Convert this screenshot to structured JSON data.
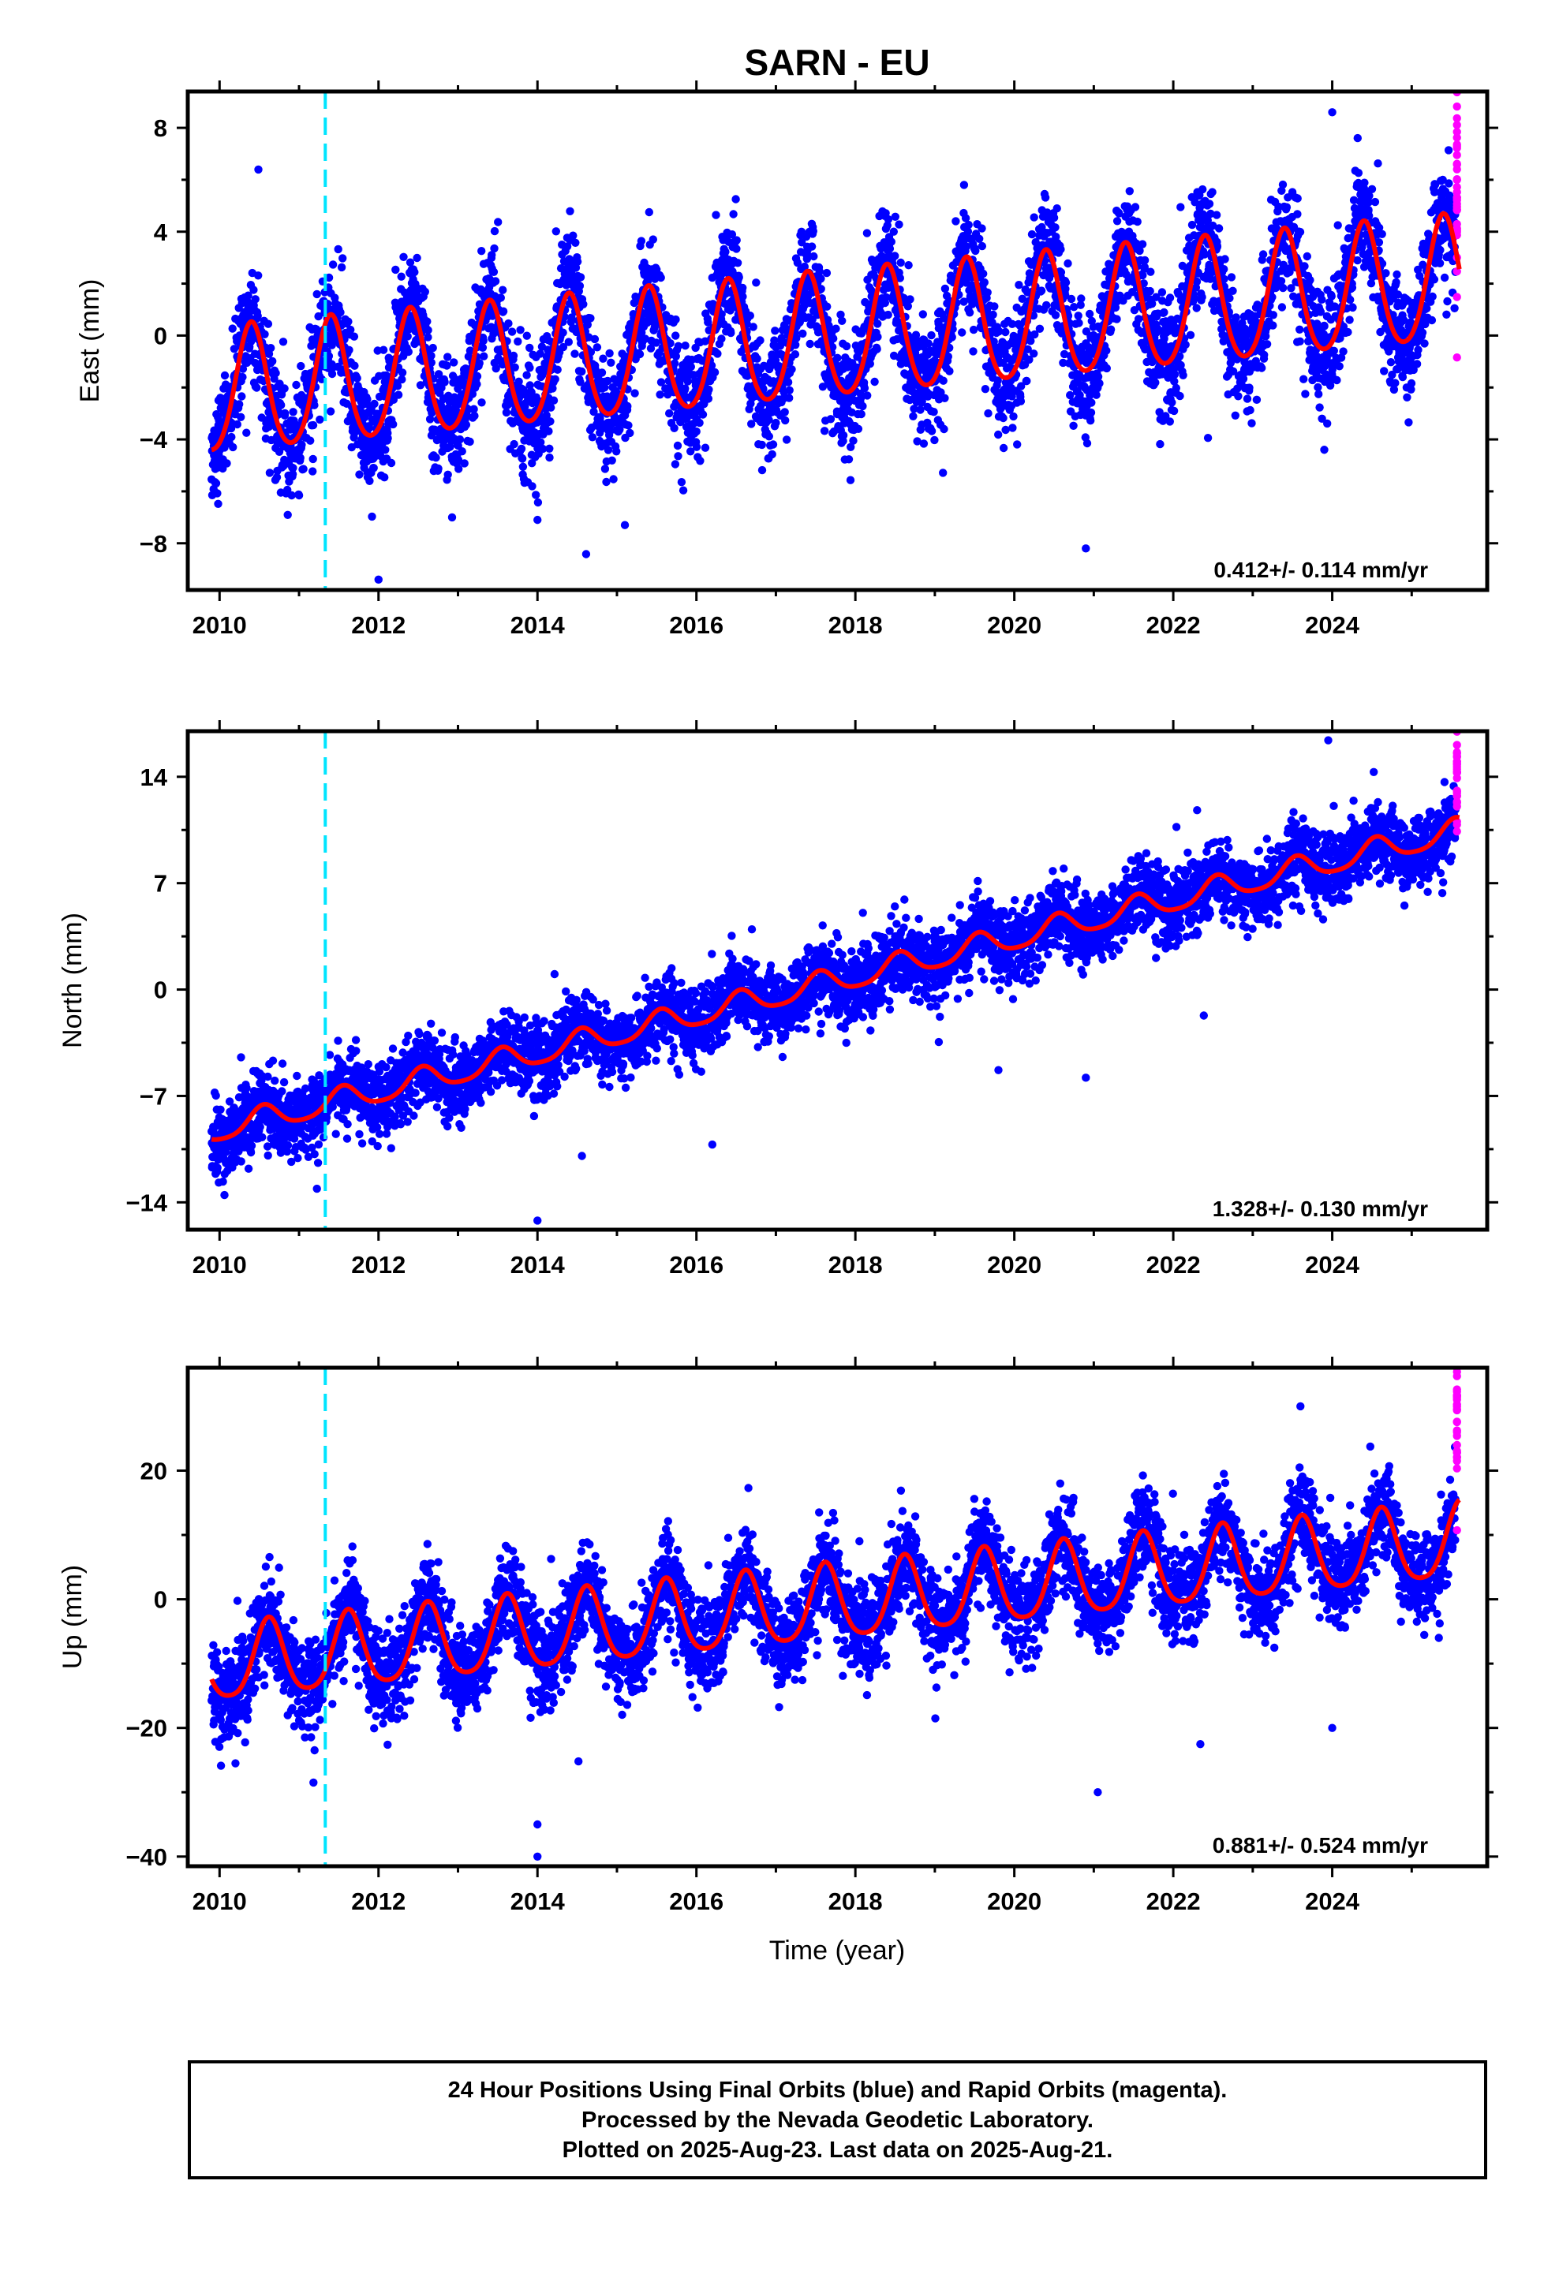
{
  "title": "SARN - EU",
  "colors": {
    "final_orbits": "#0000ff",
    "rapid_orbits": "#ff00ff",
    "model_fit": "#ff0000",
    "equipment_change": "#00e5ff",
    "frame": "#000000"
  },
  "footer": {
    "line1": "24 Hour Positions Using Final Orbits (blue) and Rapid Orbits (magenta).",
    "line2": "Processed by the Nevada Geodetic Laboratory.",
    "line3": "Plotted on 2025-Aug-23. Last data on 2025-Aug-21."
  },
  "chart_data": [
    {
      "type": "scatter",
      "component": "east",
      "ylabel": "East (mm)",
      "xlabel": "",
      "xlim": [
        2009.6,
        2025.95
      ],
      "ylim": [
        -9.8,
        9.4
      ],
      "xticks": [
        2010,
        2012,
        2014,
        2016,
        2018,
        2020,
        2022,
        2024
      ],
      "xtick_labels": [
        "2010",
        "2012",
        "2014",
        "2016",
        "2018",
        "2020",
        "2022",
        "2024"
      ],
      "yticks": [
        -8,
        -4,
        0,
        4,
        8
      ],
      "ytick_labels": [
        "−8",
        "−4",
        "0",
        "4",
        "8"
      ],
      "rate_label": "0.412+/- 0.114 mm/yr",
      "equipment_change_x": 2011.33,
      "model": {
        "start": 2009.9,
        "end": 2025.6,
        "value_at_start": -4.7,
        "value_at_end": 2.8,
        "annual_amplitude": 2.4,
        "annual_peak_phase": 0.4,
        "semiannual_amplitude": 0.3
      },
      "scatter": {
        "daily_scatter_mm": 1.1,
        "final_end": 2025.55,
        "rapid_start": 2025.55,
        "rapid_end": 2025.64
      },
      "outliers": [
        [
          2012.0,
          -9.4
        ],
        [
          2020.9,
          -8.2
        ],
        [
          2014.0,
          -7.1
        ],
        [
          2015.1,
          -7.3
        ],
        [
          2023.9,
          -4.4
        ],
        [
          2024.0,
          8.6
        ]
      ]
    },
    {
      "type": "scatter",
      "component": "north",
      "ylabel": "North (mm)",
      "xlabel": "",
      "xlim": [
        2009.6,
        2025.95
      ],
      "ylim": [
        -15.8,
        17.0
      ],
      "xticks": [
        2010,
        2012,
        2014,
        2016,
        2018,
        2020,
        2022,
        2024
      ],
      "xtick_labels": [
        "2010",
        "2012",
        "2014",
        "2016",
        "2018",
        "2020",
        "2022",
        "2024"
      ],
      "yticks": [
        -14,
        -7,
        0,
        7,
        14
      ],
      "ytick_labels": [
        "−14",
        "−7",
        "0",
        "7",
        "14"
      ],
      "rate_label": "1.328+/- 0.130 mm/yr",
      "equipment_change_x": 2011.33,
      "model": {
        "start": 2009.9,
        "end": 2025.6,
        "value_at_start": -9.8,
        "value_at_end": 11.2,
        "annual_amplitude": 0.8,
        "annual_peak_phase": 0.55,
        "semiannual_amplitude": 0.15
      },
      "scatter": {
        "daily_scatter_mm": 1.2,
        "final_end": 2025.55,
        "rapid_start": 2025.55,
        "rapid_end": 2025.64
      },
      "outliers": [
        [
          2014.0,
          -15.2
        ],
        [
          2016.2,
          -10.2
        ],
        [
          2023.95,
          16.4
        ],
        [
          2019.8,
          -5.3
        ],
        [
          2020.9,
          -5.8
        ],
        [
          2022.3,
          11.8
        ]
      ]
    },
    {
      "type": "scatter",
      "component": "up",
      "ylabel": "Up (mm)",
      "xlabel": "Time (year)",
      "xlim": [
        2009.6,
        2025.95
      ],
      "ylim": [
        -41.5,
        36.0
      ],
      "xticks": [
        2010,
        2012,
        2014,
        2016,
        2018,
        2020,
        2022,
        2024
      ],
      "xtick_labels": [
        "2010",
        "2012",
        "2014",
        "2016",
        "2018",
        "2020",
        "2022",
        "2024"
      ],
      "yticks": [
        -40,
        -20,
        0,
        20
      ],
      "ytick_labels": [
        "−40",
        "−20",
        "0",
        "20"
      ],
      "rate_label": "0.881+/- 0.524 mm/yr",
      "equipment_change_x": 2011.33,
      "model": {
        "start": 2009.9,
        "end": 2025.6,
        "value_at_start": -11.5,
        "value_at_end": 14.5,
        "annual_amplitude": 5.8,
        "annual_peak_phase": 0.62,
        "semiannual_amplitude": 1.0
      },
      "scatter": {
        "daily_scatter_mm": 3.6,
        "final_end": 2025.55,
        "rapid_start": 2025.55,
        "rapid_end": 2025.64
      },
      "outliers": [
        [
          2014.0,
          -40.0
        ],
        [
          2014.0,
          -35.0
        ],
        [
          2021.05,
          -30.0
        ],
        [
          2010.2,
          -25.5
        ],
        [
          2023.6,
          30.0
        ],
        [
          2024.0,
          -20.0
        ]
      ]
    }
  ]
}
